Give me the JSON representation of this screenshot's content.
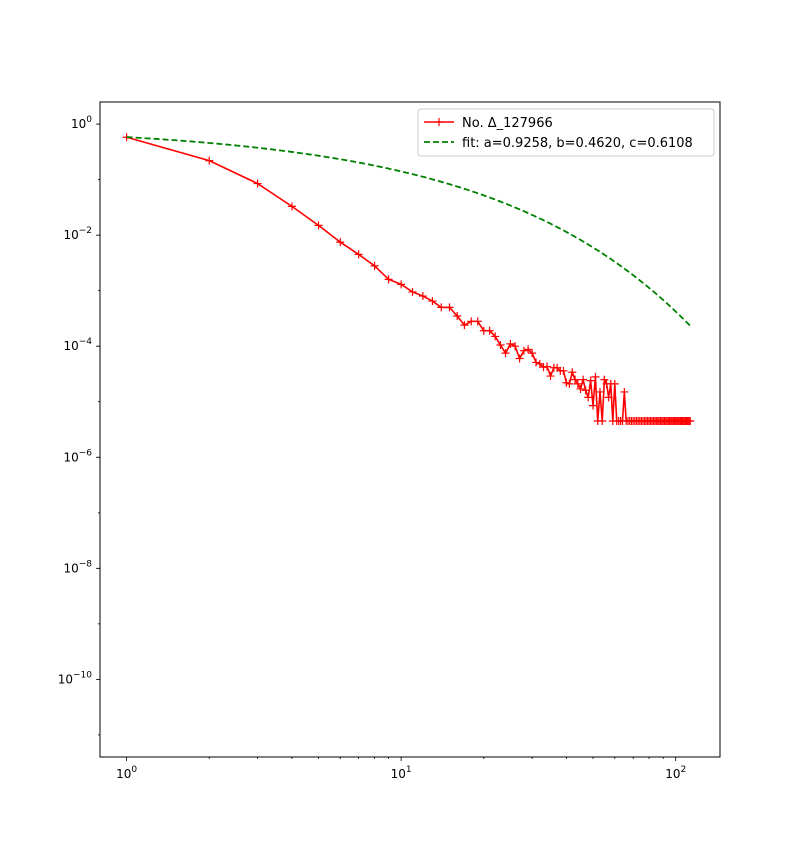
{
  "chart_data": {
    "type": "line",
    "title": "",
    "xlabel": "",
    "ylabel": "",
    "xscale": "log",
    "yscale": "log",
    "xlim": [
      0.8,
      145
    ],
    "ylim": [
      4e-12,
      2.5
    ],
    "x_ticks": [
      {
        "value": 1,
        "base": "10",
        "exp": "0"
      },
      {
        "value": 10,
        "base": "10",
        "exp": "1"
      },
      {
        "value": 100,
        "base": "10",
        "exp": "2"
      }
    ],
    "y_ticks": [
      {
        "value": 1,
        "base": "10",
        "exp": "0"
      },
      {
        "value": 0.01,
        "base": "10",
        "exp": "−2"
      },
      {
        "value": 0.0001,
        "base": "10",
        "exp": "−4"
      },
      {
        "value": 1e-06,
        "base": "10",
        "exp": "−6"
      },
      {
        "value": 1e-08,
        "base": "10",
        "exp": "−8"
      },
      {
        "value": 1e-10,
        "base": "10",
        "exp": "−10"
      }
    ],
    "legend_position": "top-right",
    "grid": false,
    "series": [
      {
        "name": "No. Δ_127966",
        "color": "#ff0000",
        "style": "solid",
        "marker": "+",
        "x": [
          1,
          2,
          3,
          4,
          5,
          6,
          7,
          8,
          9,
          10,
          11,
          12,
          13,
          14,
          15,
          16,
          17,
          18,
          19,
          20,
          21,
          22,
          23,
          24,
          25,
          26,
          27,
          28,
          29,
          30,
          31,
          32,
          33,
          34,
          35,
          36,
          37,
          38,
          39,
          40,
          41,
          42,
          43,
          44,
          45,
          46,
          47,
          48,
          49,
          50,
          51,
          52,
          53,
          54,
          55,
          56,
          57,
          58,
          59,
          60,
          61,
          62,
          63,
          64,
          65,
          66,
          67,
          68,
          69,
          70,
          71,
          72,
          73,
          74,
          75,
          76,
          77,
          78,
          79,
          80,
          81,
          82,
          83,
          84,
          85,
          86,
          87,
          88,
          89,
          90,
          91,
          92,
          93,
          94,
          95,
          96,
          97,
          98,
          99,
          100,
          101,
          102,
          103,
          104,
          105,
          106,
          107,
          108,
          109,
          110,
          111,
          112,
          113
        ],
        "y": [
          0.58,
          0.22,
          0.085,
          0.033,
          0.015,
          0.0075,
          0.0045,
          0.0028,
          0.0016,
          0.0013,
          0.00095,
          0.0008,
          0.00065,
          0.0005,
          0.0005,
          0.00035,
          0.00024,
          0.00028,
          0.00028,
          0.00019,
          0.00019,
          0.00015,
          0.000105,
          7.5e-05,
          0.00011,
          0.0001,
          6e-05,
          8.3e-05,
          8.8e-05,
          7.5e-05,
          5.1e-05,
          4.8e-05,
          4.2e-05,
          4.3e-05,
          2.9e-05,
          4.1e-05,
          4.1e-05,
          3.6e-05,
          3.6e-05,
          2.2e-05,
          2.1e-05,
          3.4e-05,
          2.5e-05,
          2.1e-05,
          1.7e-05,
          2.5e-05,
          1.6e-05,
          1.2e-05,
          2.4e-05,
          8.5e-06,
          2.8e-05,
          4.5e-06,
          1.5e-05,
          4.5e-06,
          2.5e-05,
          2.1e-05,
          1.2e-05,
          2.1e-05,
          4.5e-06,
          2.1e-05,
          4.5e-06,
          4.5e-06,
          4.5e-06,
          4.5e-06,
          1.5e-05,
          4.5e-06,
          4.5e-06,
          4.5e-06,
          4.5e-06,
          4.5e-06,
          4.5e-06,
          4.5e-06,
          4.5e-06,
          4.5e-06,
          4.5e-06,
          4.5e-06,
          4.5e-06,
          4.5e-06,
          4.5e-06,
          4.5e-06,
          4.5e-06,
          4.5e-06,
          4.5e-06,
          4.5e-06,
          4.5e-06,
          4.5e-06,
          4.5e-06,
          4.5e-06,
          4.5e-06,
          4.5e-06,
          4.5e-06,
          4.5e-06,
          4.5e-06,
          4.5e-06,
          4.5e-06,
          4.5e-06,
          4.5e-06,
          4.5e-06,
          4.5e-06,
          4.5e-06,
          4.5e-06,
          4.5e-06,
          4.5e-06,
          4.5e-06,
          4.5e-06,
          4.5e-06,
          4.5e-06,
          4.5e-06,
          4.5e-06,
          4.5e-06,
          4.5e-06,
          4.5e-06,
          4.5e-06
        ],
        "note_x_sampled": true
      },
      {
        "name": "fit: a=0.9258, b=0.4620, c=0.6108",
        "color": "#008000",
        "style": "dashed",
        "marker": "none",
        "formula": "y = a * exp(-b * x^c)",
        "params": {
          "a": 0.9258,
          "b": 0.462,
          "c": 0.6108
        }
      }
    ]
  }
}
